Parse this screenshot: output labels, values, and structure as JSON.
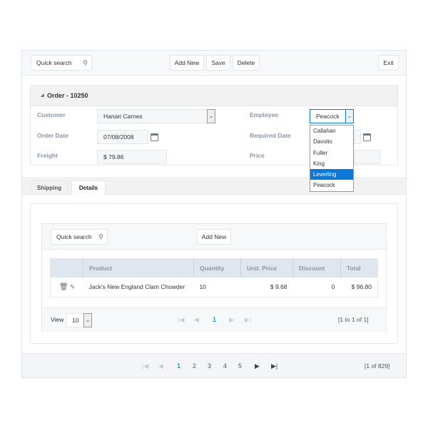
{
  "toolbar": {
    "search_placeholder": "Quick search",
    "add_new": "Add New",
    "save": "Save",
    "delete": "Delete",
    "exit": "Exit"
  },
  "order": {
    "title": "Order - 10250",
    "fields": {
      "customer_label": "Customer",
      "customer_value": "Hanari Carnes",
      "employee_label": "Employee",
      "employee_value": "Peacock",
      "order_date_label": "Order Date",
      "order_date_value": "07/08/2008",
      "required_date_label": "Required Date",
      "freight_label": "Freight",
      "freight_value": "$ 79.86",
      "price_label": "Price"
    },
    "employee_options": [
      "Callahan",
      "Davolio",
      "Fuller",
      "King",
      "Leverling",
      "Peacock"
    ],
    "employee_highlighted": "Leverling"
  },
  "tabs": [
    {
      "label": "Shipping",
      "active": false
    },
    {
      "label": "Details",
      "active": true
    }
  ],
  "details": {
    "search_placeholder": "Quick search",
    "add_new": "Add New",
    "columns": [
      "",
      "Product",
      "Quantity",
      "Unit. Price",
      "Discount",
      "Total"
    ],
    "rows": [
      {
        "product": "Jack's New England Clam Chowder",
        "quantity": "10",
        "unit_price": "$ 9.68",
        "discount": "0",
        "total": "$ 96.80"
      }
    ],
    "view_label": "View",
    "page_size": "10",
    "current_page": "1",
    "range": "[1 to 1 of 1]"
  },
  "pager": {
    "pages": [
      "1",
      "2",
      "3",
      "4",
      "5"
    ],
    "current": "1",
    "summary": "[1 of 829]"
  },
  "colors": {
    "accent": "#0a78d7",
    "active_page": "#1a9ad6"
  }
}
